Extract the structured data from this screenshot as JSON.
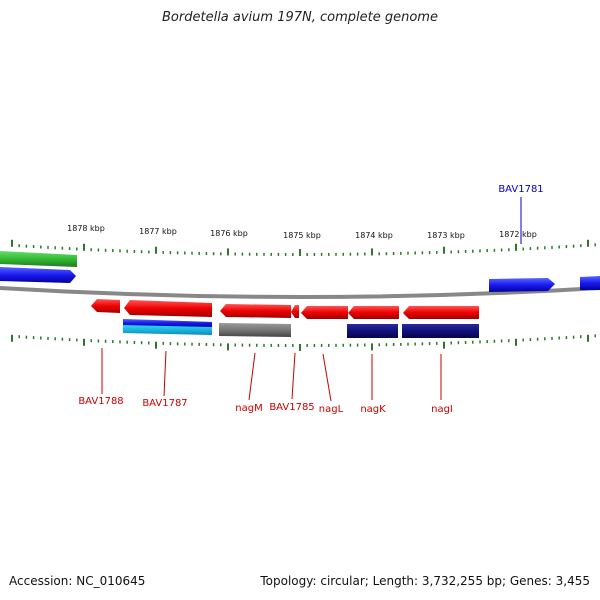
{
  "title": "Bordetella avium 197N, complete genome",
  "accession": "Accession: NC_010645",
  "summary": "Topology: circular; Length: 3,732,255 bp; Genes: 3,455",
  "kbp_labels": [
    "1878 kbp",
    "1877 kbp",
    "1876 kbp",
    "1875 kbp",
    "1874 kbp",
    "1873 kbp",
    "1872 kbp"
  ],
  "gene_labels": [
    {
      "name": "BAV1788",
      "color": "#cc0000"
    },
    {
      "name": "BAV1787",
      "color": "#cc0000"
    },
    {
      "name": "nagM",
      "color": "#cc0000"
    },
    {
      "name": "BAV1785",
      "color": "#cc0000"
    },
    {
      "name": "nagL",
      "color": "#cc0000"
    },
    {
      "name": "nagK",
      "color": "#cc0000"
    },
    {
      "name": "nagI",
      "color": "#cc0000"
    },
    {
      "name": "BAV1781",
      "color": "#0000cc"
    }
  ],
  "colors": {
    "forward_gene": "#1a1aee",
    "reverse_gene": "#e00000",
    "green_feature": "#33bb33",
    "cyan_feature": "#22ccee",
    "gray_feature": "#777777",
    "navy_feature": "#10107a",
    "tick": "#2a7a2a",
    "backbone": "#888888"
  }
}
